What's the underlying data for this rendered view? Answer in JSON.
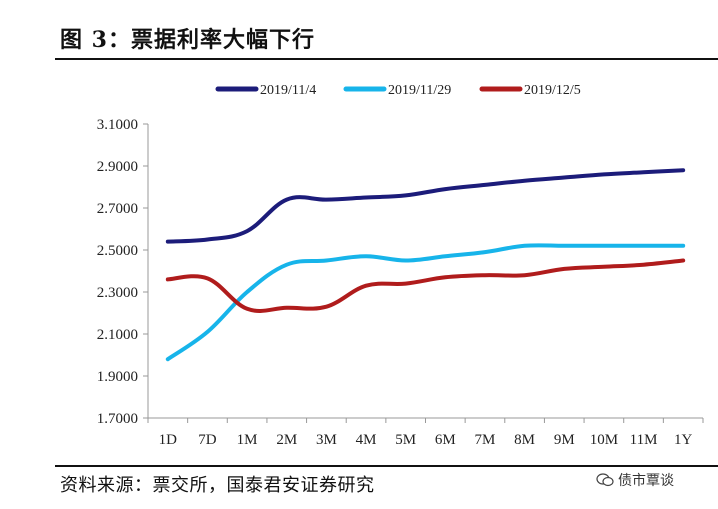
{
  "header": {
    "title": "图 3：票据利率大幅下行"
  },
  "footer": {
    "source": "资料来源：票交所，国泰君安证券研究",
    "watermark": "债市覃谈"
  },
  "chart_data": {
    "type": "line",
    "categories": [
      "1D",
      "7D",
      "1M",
      "2M",
      "3M",
      "4M",
      "5M",
      "6M",
      "7M",
      "8M",
      "9M",
      "10M",
      "11M",
      "1Y"
    ],
    "ylim": [
      1.7,
      3.1
    ],
    "yticks": [
      "3.1000",
      "2.9000",
      "2.7000",
      "2.5000",
      "2.3000",
      "2.1000",
      "1.9000",
      "1.7000"
    ],
    "legend_position": "top",
    "grid": false,
    "series": [
      {
        "name": "2019/11/4",
        "color": "#1c1c7a",
        "values": [
          2.54,
          2.55,
          2.59,
          2.74,
          2.74,
          2.75,
          2.76,
          2.79,
          2.81,
          2.83,
          2.845,
          2.86,
          2.87,
          2.88
        ]
      },
      {
        "name": "2019/11/29",
        "color": "#17b4ea",
        "values": [
          1.98,
          2.11,
          2.3,
          2.43,
          2.45,
          2.47,
          2.45,
          2.47,
          2.49,
          2.52,
          2.52,
          2.52,
          2.52,
          2.52
        ]
      },
      {
        "name": "2019/12/5",
        "color": "#b01c1c",
        "values": [
          2.36,
          2.365,
          2.22,
          2.225,
          2.23,
          2.33,
          2.34,
          2.37,
          2.38,
          2.38,
          2.41,
          2.42,
          2.43,
          2.45
        ]
      }
    ]
  }
}
